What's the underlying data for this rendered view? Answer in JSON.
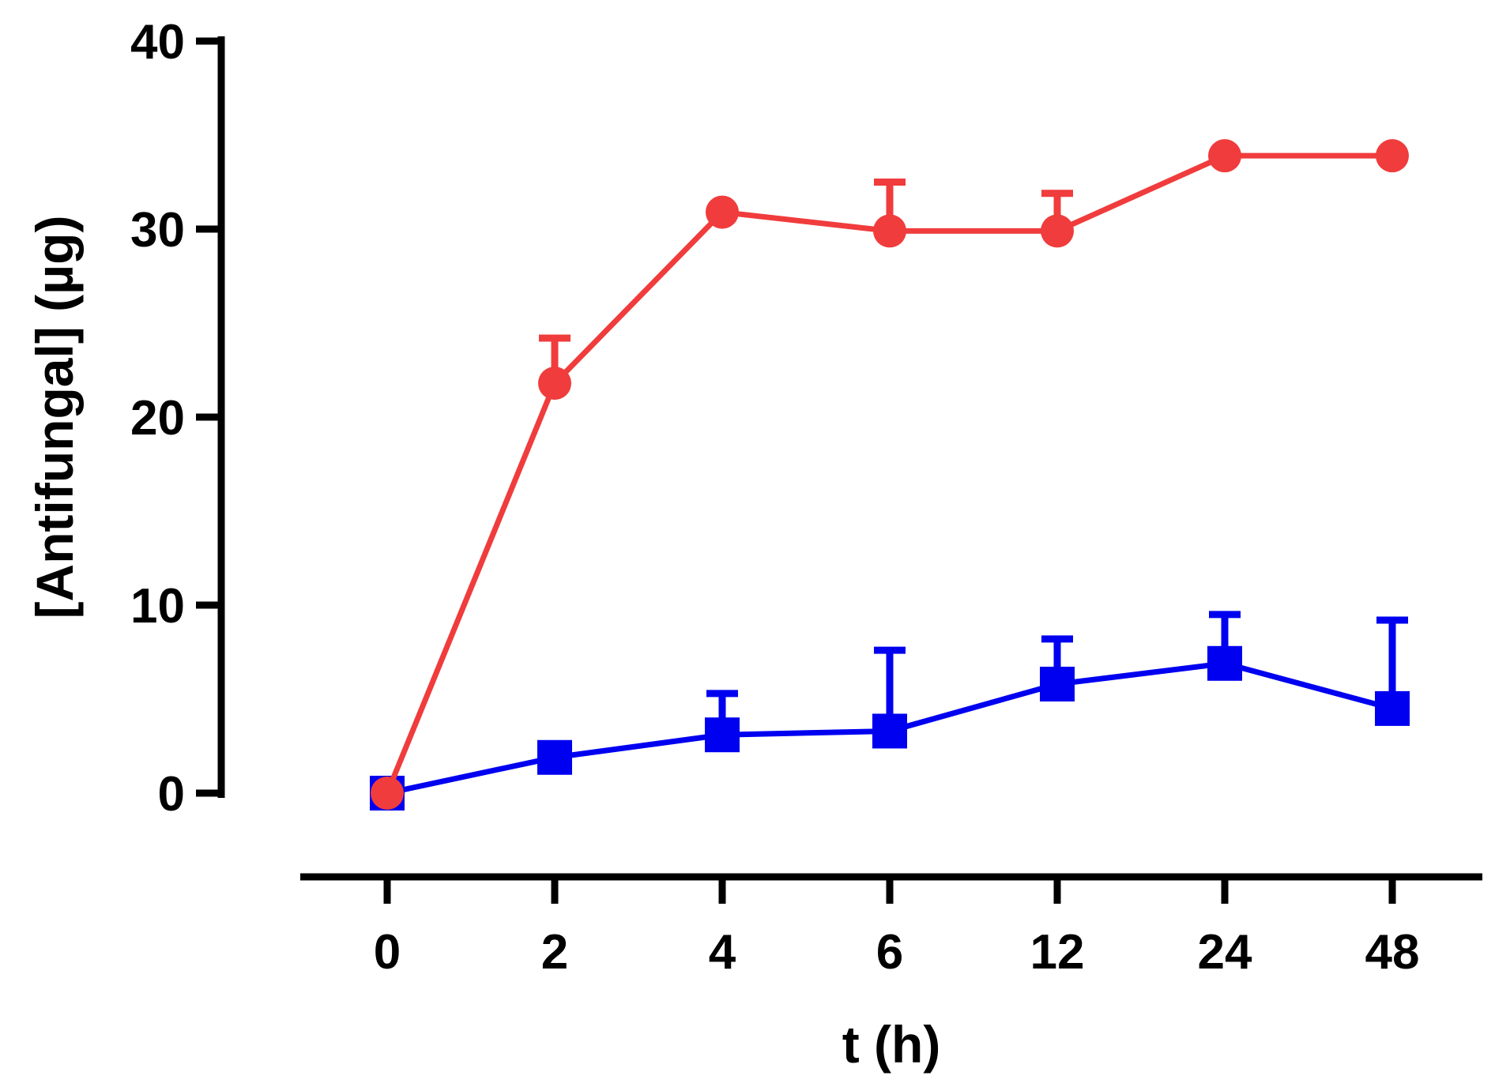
{
  "chart_data": {
    "type": "line",
    "title": "",
    "xlabel": "t (h)",
    "ylabel": "[Antifungal] (µg)",
    "ylim": [
      0,
      40
    ],
    "yticks": [
      "0",
      "10",
      "20",
      "30",
      "40"
    ],
    "yticks_values": [
      0,
      10,
      20,
      30,
      40
    ],
    "categories": [
      "0",
      "2",
      "4",
      "6",
      "12",
      "24",
      "48"
    ],
    "grid": false,
    "legend": "none",
    "series": [
      {
        "name": "red series",
        "color": "#f03c3c",
        "marker": "circle",
        "values": [
          0,
          21.8,
          30.9,
          29.9,
          29.9,
          33.9,
          33.9
        ],
        "error_upper": [
          0,
          2.4,
          0,
          2.6,
          2.0,
          0,
          0
        ]
      },
      {
        "name": "blue series",
        "color": "#0000f0",
        "marker": "square",
        "values": [
          0,
          1.9,
          3.1,
          3.3,
          5.8,
          6.9,
          4.5
        ],
        "error_upper": [
          0,
          0,
          2.2,
          4.3,
          2.4,
          2.6,
          4.7
        ]
      }
    ]
  }
}
